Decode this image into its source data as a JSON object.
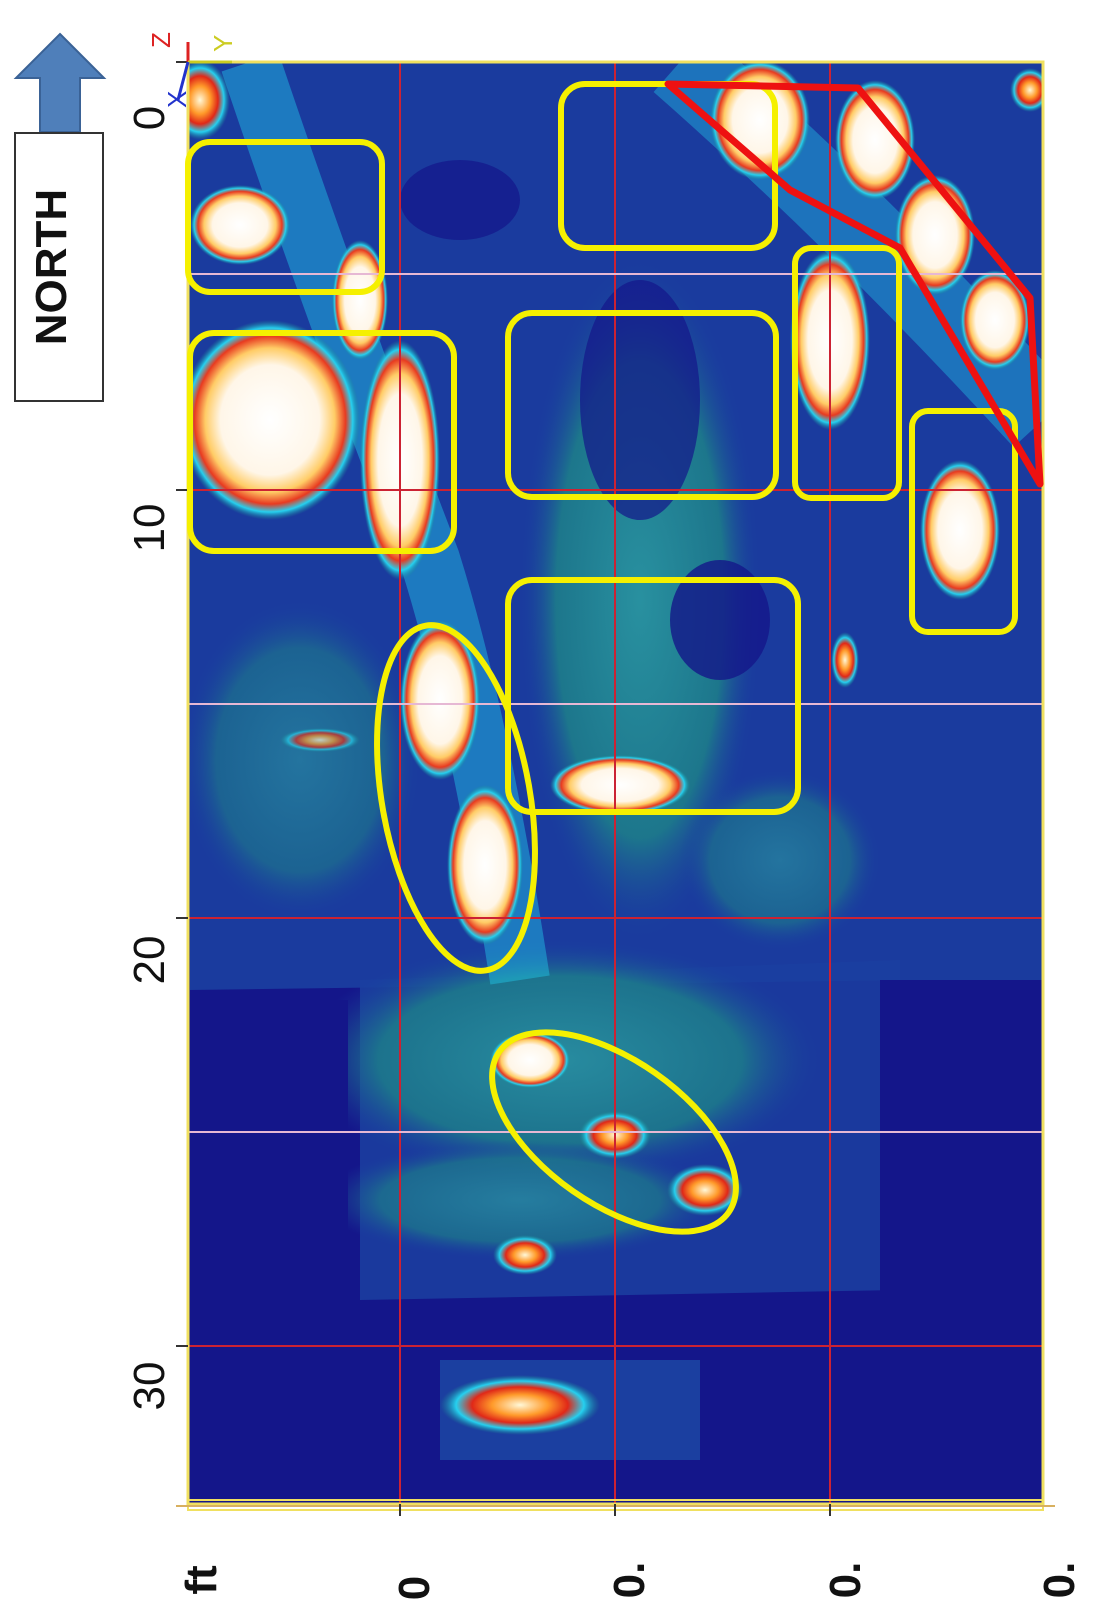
{
  "compass": {
    "label": "NORTH",
    "arrow_color": "#4f7fba"
  },
  "axes_triad": {
    "z_label": "Z",
    "y_label": "Y",
    "x_label": "X"
  },
  "distance_ticks": [
    "0",
    "10",
    "20",
    "30"
  ],
  "lower_ticks": [
    "ft",
    "0",
    "0.",
    "0.",
    "0."
  ],
  "colors": {
    "background": "#14168a",
    "mid_blue": "#1b3fa0",
    "teal": "#1d8a8f",
    "cyan": "#22c8e8",
    "yellow_marker": "#f5f000",
    "red_marker": "#ee1111",
    "grid_red": "#cc2233",
    "grid_pink": "#e6b8d4"
  }
}
